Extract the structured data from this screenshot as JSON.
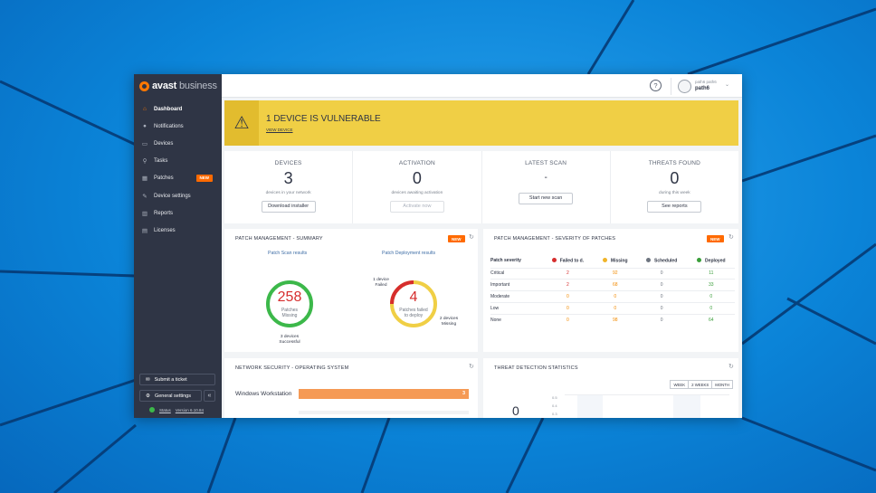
{
  "sidebar": {
    "logo_primary": "avast",
    "logo_secondary": "business",
    "items": [
      {
        "label": "Dashboard",
        "icon": "home-icon"
      },
      {
        "label": "Notifications",
        "icon": "bell-icon"
      },
      {
        "label": "Devices",
        "icon": "monitor-icon"
      },
      {
        "label": "Tasks",
        "icon": "search-icon"
      },
      {
        "label": "Patches",
        "icon": "patch-icon",
        "badge": "NEW"
      },
      {
        "label": "Device settings",
        "icon": "wrench-icon"
      },
      {
        "label": "Reports",
        "icon": "bar-chart-icon"
      },
      {
        "label": "Licenses",
        "icon": "license-icon"
      }
    ],
    "ticket_label": "Submit a ticket",
    "settings_label": "General settings",
    "status_label": "Status",
    "version_label": "Version 6.10.84"
  },
  "topbar": {
    "help_symbol": "?",
    "user_top": "path6 path6",
    "user_name": "path6"
  },
  "alert": {
    "title": "1 DEVICE IS VULNERABLE",
    "link": "VIEW DEVICE"
  },
  "stats": [
    {
      "label": "DEVICES",
      "value": "3",
      "desc": "devices in your network",
      "button": "Download installer",
      "disabled": false
    },
    {
      "label": "ACTIVATION",
      "value": "0",
      "desc": "devices awaiting activation",
      "button": "Activate now",
      "disabled": true
    },
    {
      "label": "LATEST SCAN",
      "value": "-",
      "desc": "",
      "button": "Start new scan",
      "disabled": false
    },
    {
      "label": "THREATS FOUND",
      "value": "0",
      "desc": "during this week",
      "button": "See reports",
      "disabled": false
    }
  ],
  "patch_summary": {
    "title": "PATCH MANAGEMENT - SUMMARY",
    "badge": "NEW",
    "scan_heading": "Patch Scan results",
    "deploy_heading": "Patch Deployment results",
    "scan_value": "258",
    "scan_sub_1": "Patches",
    "scan_sub_2": "Missing",
    "scan_note_1": "3 devices",
    "scan_note_2": "Successful",
    "deploy_value": "4",
    "deploy_sub_1": "Patches failed",
    "deploy_sub_2": "to deploy",
    "deploy_note_left_1": "1 device",
    "deploy_note_left_2": "Failed",
    "deploy_note_right_1": "2 devices",
    "deploy_note_right_2": "Missing",
    "deploy_failed_fraction": 0.25,
    "colors": {
      "green": "#3cb84a",
      "red": "#d62d2d",
      "yellow": "#f0cf45"
    }
  },
  "patch_severity": {
    "title": "PATCH MANAGEMENT - SEVERITY OF PATCHES",
    "badge": "NEW",
    "headers": [
      "Patch severity",
      "Failed to d.",
      "Missing",
      "Scheduled",
      "Deployed"
    ],
    "header_colors": [
      "",
      "#d62d2d",
      "#f0b429",
      "#6e7580",
      "#3a9e3a"
    ],
    "rows": [
      [
        "Critical",
        "2",
        "92",
        "0",
        "11"
      ],
      [
        "Important",
        "2",
        "68",
        "0",
        "33"
      ],
      [
        "Moderate",
        "0",
        "0",
        "0",
        "0"
      ],
      [
        "Low",
        "0",
        "0",
        "0",
        "0"
      ],
      [
        "None",
        "0",
        "98",
        "0",
        "64"
      ]
    ]
  },
  "network_security": {
    "title": "NETWORK SECURITY - OPERATING SYSTEM",
    "label": "Windows Workstation",
    "value": "3"
  },
  "threat_stats": {
    "title": "THREAT DETECTION STATISTICS",
    "tabs": [
      "WEEK",
      "2 WEEKS",
      "MONTH"
    ],
    "value": "0",
    "ticks": [
      "0.5",
      "0.4",
      "0.3"
    ]
  }
}
